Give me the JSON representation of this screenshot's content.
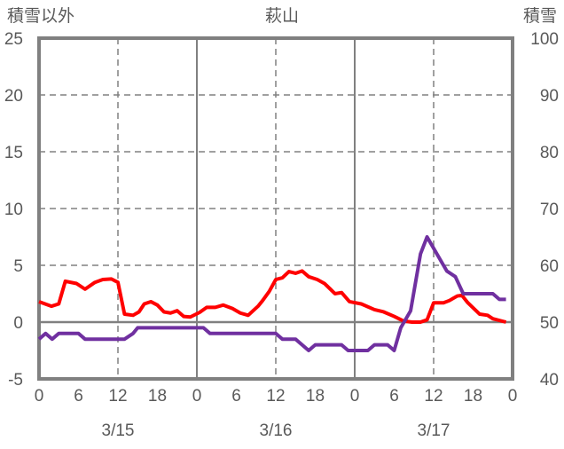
{
  "chart_data": {
    "type": "line",
    "title": "萩山",
    "ylabel": "積雪以外",
    "y2label": "積雪",
    "ylim": [
      -5,
      25
    ],
    "y2lim": [
      40,
      100
    ],
    "yticks": [
      -5,
      0,
      5,
      10,
      15,
      20,
      25
    ],
    "y2ticks": [
      40,
      50,
      60,
      70,
      80,
      90,
      100
    ],
    "xlim": [
      0,
      72
    ],
    "xticks": [
      {
        "h": 0,
        "label": "0"
      },
      {
        "h": 6,
        "label": "6"
      },
      {
        "h": 12,
        "label": "12"
      },
      {
        "h": 18,
        "label": "18"
      },
      {
        "h": 24,
        "label": "0"
      },
      {
        "h": 30,
        "label": "6"
      },
      {
        "h": 36,
        "label": "12"
      },
      {
        "h": 42,
        "label": "18"
      },
      {
        "h": 48,
        "label": "0"
      },
      {
        "h": 54,
        "label": "6"
      },
      {
        "h": 60,
        "label": "12"
      },
      {
        "h": 66,
        "label": "18"
      },
      {
        "h": 72,
        "label": "0"
      }
    ],
    "dates": [
      {
        "h": 12,
        "label": "3/15"
      },
      {
        "h": 36,
        "label": "3/16"
      },
      {
        "h": 60,
        "label": "3/17"
      }
    ],
    "series": [
      {
        "name": "積雪以外",
        "color": "#ff0000",
        "axis": "left",
        "x": [
          0,
          1.9,
          3,
          4,
          5.7,
          7,
          8.5,
          9.7,
          11,
          12,
          13,
          14.3,
          15.2,
          16,
          17,
          18,
          19,
          20,
          21,
          22,
          23,
          24.4,
          25.5,
          26.8,
          28,
          29.4,
          30.6,
          31.8,
          33.3,
          34,
          35,
          36,
          37,
          38,
          39,
          40,
          41,
          42.3,
          43.4,
          44.3,
          45,
          46,
          47.2,
          49,
          51,
          52.4,
          54,
          55.4,
          56.7,
          58,
          59,
          60,
          61.5,
          62.4,
          63.6,
          64.3,
          65.2,
          67,
          68.2,
          69,
          71
        ],
        "values": [
          1.8,
          1.4,
          1.6,
          3.6,
          3.4,
          2.9,
          3.5,
          3.75,
          3.8,
          3.5,
          0.7,
          0.6,
          0.9,
          1.6,
          1.8,
          1.5,
          0.9,
          0.8,
          1.0,
          0.5,
          0.45,
          0.85,
          1.3,
          1.3,
          1.5,
          1.2,
          0.8,
          0.6,
          1.4,
          1.9,
          2.7,
          3.75,
          3.9,
          4.45,
          4.3,
          4.5,
          4.0,
          3.75,
          3.4,
          2.9,
          2.5,
          2.6,
          1.8,
          1.6,
          1.1,
          0.9,
          0.5,
          0.1,
          0,
          0,
          0.2,
          1.7,
          1.7,
          1.9,
          2.3,
          2.35,
          1.7,
          0.7,
          0.6,
          0.3,
          0
        ]
      },
      {
        "name": "積雪",
        "color": "#7030a0",
        "axis": "right",
        "x": [
          0,
          1,
          2,
          3,
          6,
          7,
          13,
          14.3,
          15,
          25,
          26,
          36,
          37,
          39,
          41,
          42,
          46,
          47,
          50,
          51,
          53,
          54,
          55,
          56.5,
          58,
          59,
          60.5,
          62,
          63.3,
          64.5,
          65,
          69,
          70,
          71
        ],
        "values": [
          47,
          48,
          47,
          48,
          48,
          47,
          47,
          48,
          49,
          49,
          48,
          48,
          47,
          47,
          45,
          46,
          46,
          45,
          45,
          46,
          46,
          45,
          49,
          52,
          62,
          65,
          62,
          59,
          58,
          55,
          55,
          55,
          54,
          54
        ]
      }
    ]
  }
}
